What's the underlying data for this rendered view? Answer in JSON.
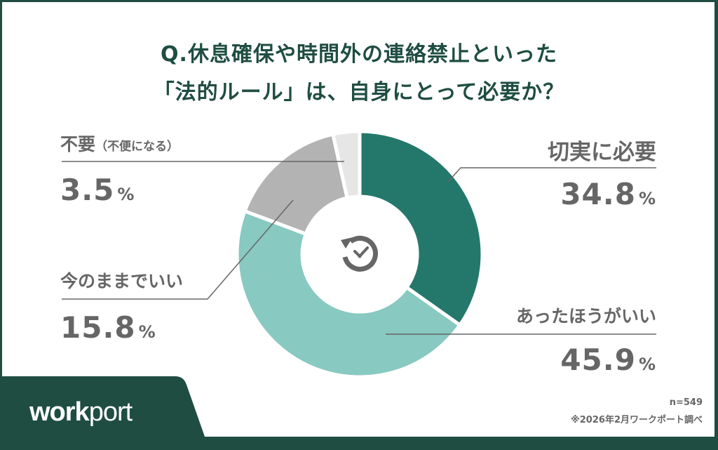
{
  "title": {
    "line1": "Q.休息確保や時間外の連絡禁止といった",
    "line2": "「法的ルール」は、自身にとって必要か？"
  },
  "labels": {
    "essential": {
      "category": "切実に必要",
      "value": "34.8",
      "unit": "%"
    },
    "nice_to_have": {
      "category": "あったほうがいい",
      "value": "45.9",
      "unit": "%"
    },
    "as_is": {
      "category": "今のままでいい",
      "value": "15.8",
      "unit": "%"
    },
    "unnecessary": {
      "category": "不要",
      "sub": "（不便になる）",
      "value": "3.5",
      "unit": "%"
    }
  },
  "center_icon": "clock-refresh-check-icon",
  "footer": {
    "sample": "n=549",
    "source": "※2026年2月ワークポート調べ"
  },
  "brand": {
    "logo_bold": "work",
    "logo_light": "port",
    "accent_plus": "+"
  },
  "colors": {
    "brand_dark_green": "#1f4d42",
    "essential": "#24786b",
    "nice_to_have": "#88c9c1",
    "as_is": "#b3b3b3",
    "unnecessary": "#e6e6e6",
    "text_gray": "#666666",
    "accent_yellow": "#f2c21b"
  },
  "chart_data": {
    "type": "pie",
    "style": "donut",
    "title": "Q.休息確保や時間外の連絡禁止といった「法的ルール」は、自身にとって必要か？",
    "categories": [
      "切実に必要",
      "あったほうがいい",
      "今のままでいい",
      "不要（不便になる）"
    ],
    "values": [
      34.8,
      45.9,
      15.8,
      3.5
    ],
    "unit": "%",
    "n": 549,
    "start_angle": "12 o'clock, clockwise",
    "colors": [
      "#24786b",
      "#88c9c1",
      "#b3b3b3",
      "#e6e6e6"
    ],
    "source": "※2026年2月ワークポート調べ"
  }
}
